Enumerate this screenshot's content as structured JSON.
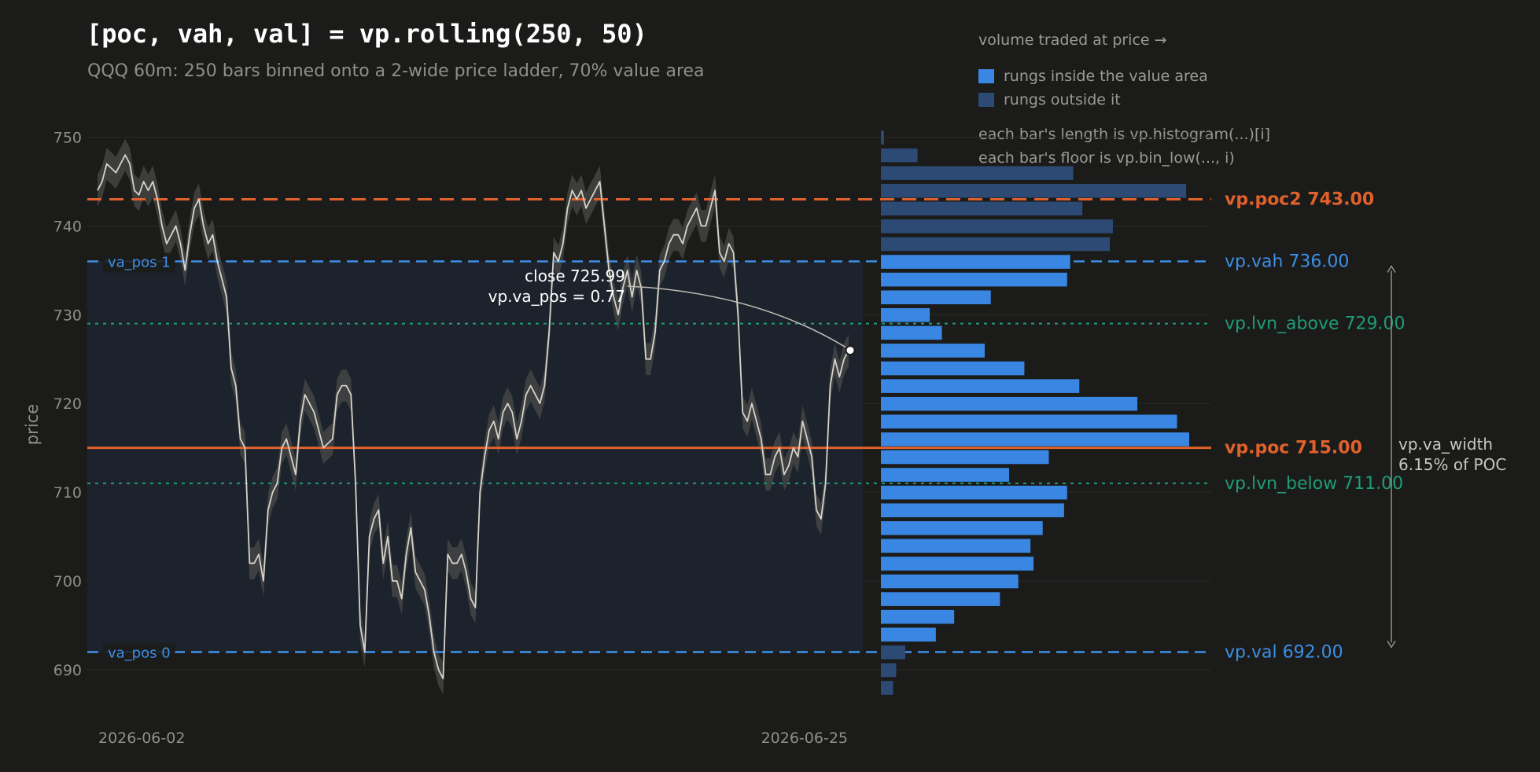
{
  "header": {
    "title": "[poc, vah, val] = vp.rolling(250, 50)",
    "subtitle": "QQQ 60m: 250 bars binned onto a 2-wide price ladder, 70% value area"
  },
  "legend": {
    "title": "volume traded at price  →",
    "inside_label": "rungs inside the value area",
    "outside_label": "rungs outside it",
    "note_length": "each bar's length is  vp.histogram(...)[i]",
    "note_floor": "each bar's floor is   vp.bin_low(..., i)"
  },
  "colors": {
    "background": "#1b1b1a",
    "value_area_fill": "#1d232c",
    "price_line": "#d6d3c9",
    "price_band": "#4a4a48",
    "poc": "#e0612b",
    "va_lines": "#3d8fe6",
    "lvn": "#1f9c76",
    "inside_rung": "#3a87e3",
    "outside_rung": "#2c4a73",
    "grid": "#2a2a29",
    "text_muted": "#8f8f8a"
  },
  "chart_data": {
    "type": "line",
    "title": "[poc, vah, val] = vp.rolling(250, 50)",
    "subtitle": "QQQ 60m: 250 bars binned onto a 2-wide price ladder, 70% value area",
    "xlabel": "",
    "ylabel": "price",
    "ylim": [
      686,
      750
    ],
    "y_ticks": [
      690,
      700,
      710,
      720,
      730,
      740,
      750
    ],
    "x_tick_labels": [
      "2026-06-02",
      "2026-06-25"
    ],
    "grid": true,
    "price_series": {
      "name": "close",
      "values": [
        744,
        745,
        747,
        746.5,
        746,
        747,
        748,
        747,
        744,
        743.5,
        745,
        744,
        745,
        743,
        740,
        738,
        739,
        740,
        738,
        735,
        739,
        742,
        743,
        740,
        738,
        739,
        736,
        734,
        732,
        724,
        722,
        716,
        715,
        702,
        702,
        703,
        700,
        708,
        710,
        711,
        715,
        716,
        714,
        712,
        718,
        721,
        720,
        719,
        717,
        715,
        715.5,
        716,
        721,
        722,
        722,
        721,
        711,
        695,
        692,
        705,
        707,
        708,
        702,
        705,
        700,
        700,
        698,
        703,
        706,
        701,
        700,
        699,
        696,
        692,
        690,
        689,
        703,
        702,
        702,
        703,
        701,
        698,
        697,
        710,
        714,
        717,
        718,
        716,
        719,
        720,
        719,
        716,
        718,
        721,
        722,
        721,
        720,
        722,
        728,
        737,
        736,
        738,
        742,
        744,
        743,
        744,
        742,
        743,
        744,
        745,
        740,
        735,
        732,
        730,
        733,
        735,
        732,
        735,
        733,
        725,
        725,
        728,
        735,
        736,
        738,
        739,
        739,
        738,
        740,
        741,
        742,
        740,
        740,
        742,
        744,
        737,
        736,
        738,
        737,
        730,
        719,
        718,
        720,
        718,
        716,
        712,
        712,
        714,
        715,
        712,
        713,
        715,
        714,
        718,
        716,
        714,
        708,
        707,
        711,
        722,
        725,
        723,
        725,
        726
      ]
    },
    "price_band": {
      "name": "high-low range",
      "low_offset": -1.8,
      "high_offset": 1.8
    },
    "profile": {
      "bin_width": 2,
      "bin_lows": [
        749,
        747,
        745,
        743,
        741,
        739,
        737,
        735,
        733,
        731,
        729,
        727,
        725,
        723,
        721,
        719,
        717,
        715,
        713,
        711,
        709,
        707,
        705,
        703,
        701,
        699,
        697,
        695,
        693,
        691,
        689,
        687
      ],
      "volumes": [
        0.01,
        0.12,
        0.63,
        1.0,
        0.66,
        0.76,
        0.75,
        0.62,
        0.61,
        0.36,
        0.16,
        0.2,
        0.34,
        0.47,
        0.65,
        0.84,
        0.97,
        1.01,
        0.55,
        0.42,
        0.61,
        0.6,
        0.53,
        0.49,
        0.5,
        0.45,
        0.39,
        0.24,
        0.18,
        0.08,
        0.05,
        0.04
      ],
      "in_value_area": [
        false,
        false,
        false,
        false,
        false,
        false,
        false,
        true,
        true,
        true,
        true,
        true,
        true,
        true,
        true,
        true,
        true,
        true,
        true,
        true,
        true,
        true,
        true,
        true,
        true,
        true,
        true,
        true,
        true,
        false,
        false,
        false
      ]
    },
    "levels": {
      "poc": {
        "label": "vp.poc",
        "value": 715,
        "text": "715.00"
      },
      "poc2": {
        "label": "vp.poc2",
        "value": 743,
        "text": "743.00"
      },
      "vah": {
        "label": "vp.vah",
        "value": 736,
        "text": "736.00"
      },
      "val": {
        "label": "vp.val",
        "value": 692,
        "text": "692.00"
      },
      "lvn_above": {
        "label": "vp.lvn_above",
        "value": 729,
        "text": "729.00"
      },
      "lvn_below": {
        "label": "vp.lvn_below",
        "value": 711,
        "text": "711.00"
      }
    },
    "annotations": {
      "va_pos_1": "va_pos 1",
      "va_pos_0": "va_pos 0",
      "close_line1": "close 725.99",
      "close_line2": "vp.va_pos = 0.77",
      "close_value": 725.99,
      "va_width_line1": "vp.va_width",
      "va_width_line2": "6.15% of POC"
    }
  }
}
